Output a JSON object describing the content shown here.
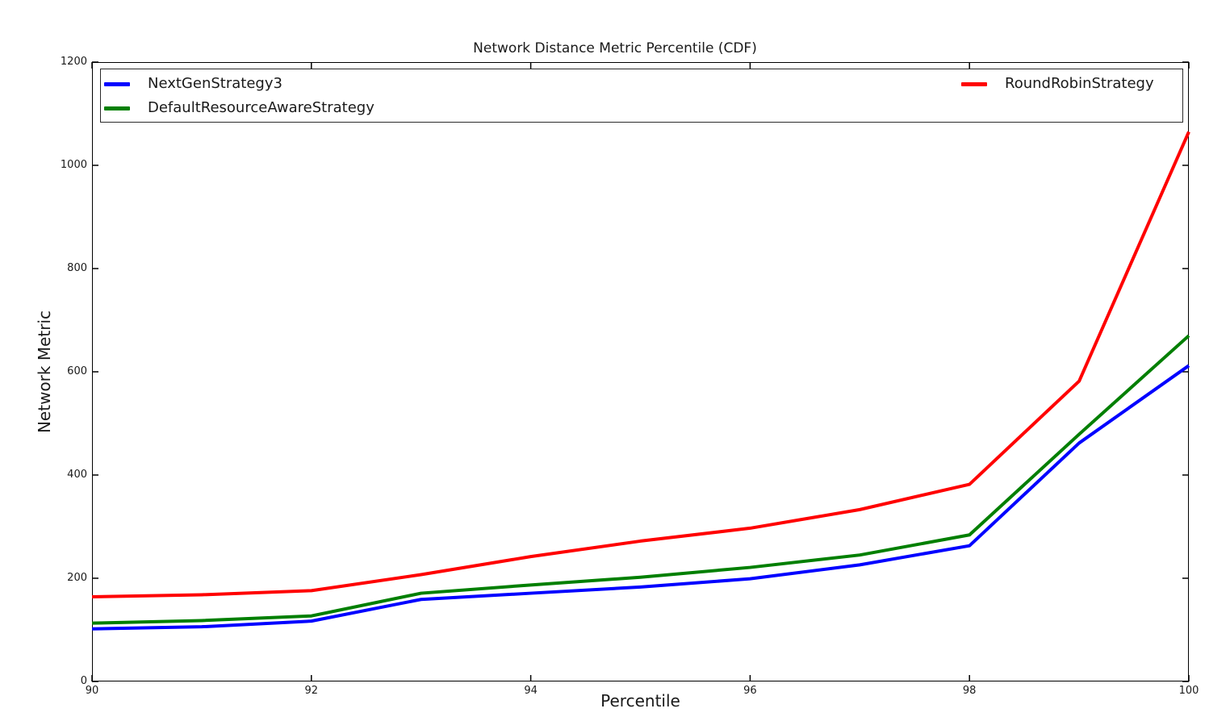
{
  "chart_data": {
    "type": "line",
    "title": "Network Distance Metric Percentile (CDF)",
    "xlabel": "Percentile",
    "ylabel": "Network Metric",
    "xlim": [
      90,
      100
    ],
    "ylim": [
      0,
      1200
    ],
    "xticks": [
      90,
      92,
      94,
      96,
      98,
      100
    ],
    "yticks": [
      0,
      200,
      400,
      600,
      800,
      1000,
      1200
    ],
    "grid": false,
    "line_width": 4,
    "legend": {
      "position": "top-inside-expand-2col",
      "entries": [
        "NextGenStrategy3",
        "DefaultResourceAwareStrategy",
        "RoundRobinStrategy"
      ]
    },
    "x": [
      90,
      91,
      92,
      93,
      94,
      95,
      96,
      97,
      98,
      99,
      100
    ],
    "series": [
      {
        "name": "NextGenStrategy3",
        "color": "#0000ff",
        "values": [
          102,
          106,
          117,
          159,
          171,
          183,
          199,
          226,
          263,
          462,
          612
        ]
      },
      {
        "name": "DefaultResourceAwareStrategy",
        "color": "#007f00",
        "values": [
          113,
          118,
          127,
          171,
          187,
          202,
          221,
          245,
          284,
          479,
          670
        ]
      },
      {
        "name": "RoundRobinStrategy",
        "color": "#ff0000",
        "values": [
          164,
          168,
          176,
          207,
          242,
          272,
          297,
          333,
          382,
          582,
          1065
        ]
      }
    ],
    "colors": {
      "background": "#ffffff",
      "axis": "#000000",
      "text": "#1a1a1a"
    }
  }
}
